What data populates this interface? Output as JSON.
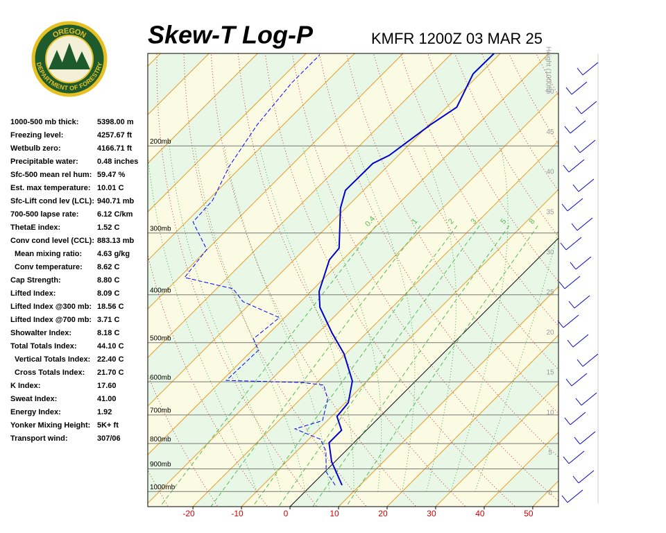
{
  "header": {
    "title": "Skew-T Log-P",
    "station": "KMFR 1200Z 03 MAR 25"
  },
  "logo": {
    "top": "OREGON",
    "bottom": "DEPARTMENT OF FORESTRY"
  },
  "stats": [
    {
      "label": "1000-500 mb thick:",
      "value": "5398.00 m"
    },
    {
      "label": "Freezing level:",
      "value": "4257.67 ft"
    },
    {
      "label": "Wetbulb zero:",
      "value": "4166.71 ft"
    },
    {
      "label": "Precipitable water:",
      "value": "0.48 inches"
    },
    {
      "label": "Sfc-500 mean rel hum:",
      "value": "59.47 %"
    },
    {
      "label": "Est. max temperature:",
      "value": "10.01 C"
    },
    {
      "label": "Sfc-Lift cond lev (LCL):",
      "value": "940.71 mb"
    },
    {
      "label": "700-500 lapse rate:",
      "value": "6.12 C/km"
    },
    {
      "label": "ThetaE index:",
      "value": "1.52 C"
    },
    {
      "label": "Conv cond level (CCL):",
      "value": "883.13 mb"
    },
    {
      "label": "Mean mixing ratio:",
      "value": "4.63 g/kg"
    },
    {
      "label": "Conv temperature:",
      "value": "8.62 C"
    },
    {
      "label": "Cap Strength:",
      "value": "8.80 C"
    },
    {
      "label": "Lifted Index:",
      "value": "8.09 C"
    },
    {
      "label": "Lifted Index @300 mb:",
      "value": "18.56 C"
    },
    {
      "label": "Lifted Index @700 mb:",
      "value": "3.71 C"
    },
    {
      "label": "Showalter Index:",
      "value": "8.18 C"
    },
    {
      "label": "Total Totals Index:",
      "value": "44.10 C"
    },
    {
      "label": "Vertical Totals Index:",
      "value": "22.40 C"
    },
    {
      "label": "Cross Totals Index:",
      "value": "21.70 C"
    },
    {
      "label": "K Index:",
      "value": "17.60"
    },
    {
      "label": "Sweat Index:",
      "value": "41.00"
    },
    {
      "label": "Energy Index:",
      "value": "1.92"
    },
    {
      "label": "Yonker Mixing Height:",
      "value": "5K+ ft"
    },
    {
      "label": "Transport wind:",
      "value": "307/06"
    }
  ],
  "chart_data": {
    "type": "skewt",
    "xlim": [
      -29.3,
      55.3
    ],
    "xticks": [
      -20,
      -10,
      0,
      10,
      20,
      30,
      40,
      50
    ],
    "ylim": [
      1073,
      130
    ],
    "y_scale": "log",
    "yticks": [
      {
        "value": 200,
        "label": "200mb"
      },
      {
        "value": 300,
        "label": "300mb"
      },
      {
        "value": 400,
        "label": "400mb"
      },
      {
        "value": 500,
        "label": "500mb"
      },
      {
        "value": 600,
        "label": "600mb"
      },
      {
        "value": 700,
        "label": "700mb"
      },
      {
        "value": 800,
        "label": "800mb"
      },
      {
        "value": 900,
        "label": "900mb"
      },
      {
        "value": 1000,
        "label": "1000mb"
      }
    ],
    "y2label": "Height (1000ft)",
    "y2lim": [
      -1.7,
      54.8
    ],
    "y2ticks": [
      0,
      5,
      10,
      15,
      20,
      25,
      30,
      35,
      40,
      45,
      50
    ],
    "mixing_ratio_labels": [
      0.4,
      1,
      2,
      3,
      5,
      8
    ],
    "series": [
      {
        "color": "#0000cc",
        "dash": false,
        "x": [
          6.3,
          -0.7,
          -5.1,
          -5.1,
          -8.9,
          -9.4,
          -13,
          -20.3,
          -27.1,
          -34.9,
          -38.3,
          -42.7,
          -43.1,
          -51.1,
          -53.7,
          -53.6,
          -51.9,
          -49.7,
          -47.9,
          -51.4,
          -51.3
        ],
        "values": [
          971,
          870,
          797,
          752,
          705,
          661,
          598,
          527,
          478,
          424,
          394,
          340,
          322,
          267,
          246,
          217,
          209,
          181,
          167,
          143,
          130
        ]
      },
      {
        "color": "#0000ff",
        "dash": true,
        "x": [
          4.9,
          0.3,
          -4,
          -7.6,
          -15,
          -11,
          -14.4,
          -18.1,
          -23.1,
          -39.1,
          -38.7,
          -42.1,
          -41.1,
          -51.9,
          -56.6,
          -68.9,
          -70.1,
          -78.6,
          -79,
          -82.6,
          -85.4,
          -86.9,
          -86.9
        ],
        "values": [
          971,
          913,
          829,
          784,
          747,
          719,
          650,
          609,
          602,
          596,
          518,
          491,
          445,
          413,
          389,
          369,
          324,
          285,
          258,
          220,
          181,
          149,
          131
        ]
      }
    ]
  }
}
